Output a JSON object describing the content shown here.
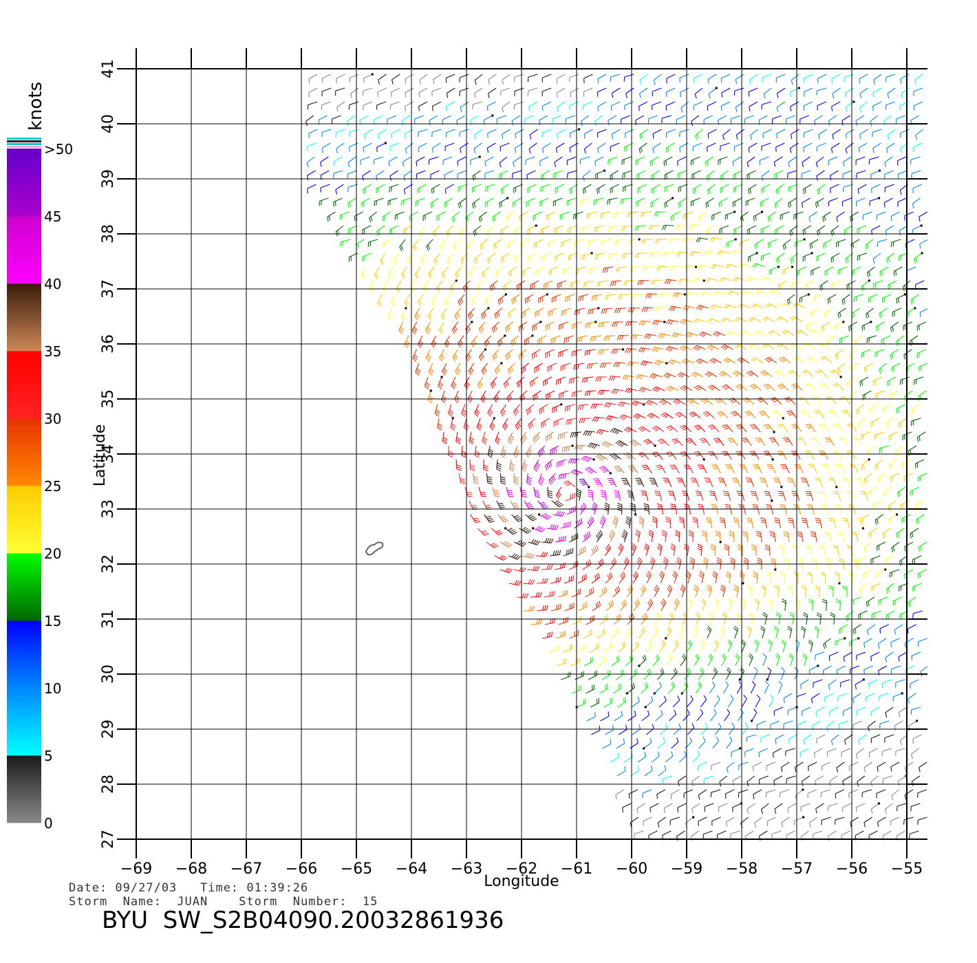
{
  "chart_data": {
    "type": "wind-barb-map",
    "xlabel": "Longitude",
    "ylabel": "Latitude",
    "xlim": [
      -69,
      -55
    ],
    "ylim": [
      27,
      41
    ],
    "x_ticks": [
      -69,
      -68,
      -67,
      -66,
      -65,
      -64,
      -63,
      -62,
      -61,
      -60,
      -59,
      -58,
      -57,
      -56,
      -55
    ],
    "y_ticks": [
      27,
      28,
      29,
      30,
      31,
      32,
      33,
      34,
      35,
      36,
      37,
      38,
      39,
      40,
      41
    ],
    "x_tick_labels": [
      "−69",
      "−68",
      "−67",
      "−66",
      "−65",
      "−64",
      "−63",
      "−62",
      "−61",
      "−60",
      "−59",
      "−58",
      "−57",
      "−56",
      "−55"
    ],
    "y_tick_labels": [
      "27",
      "28",
      "29",
      "30",
      "31",
      "32",
      "33",
      "34",
      "35",
      "36",
      "37",
      "38",
      "39",
      "40",
      "41"
    ],
    "grid": true,
    "colorbar": {
      "unit": "knots",
      "labels": [
        "0",
        "5",
        "10",
        "15",
        "20",
        "25",
        "30",
        "35",
        "40",
        "45",
        ">50"
      ],
      "bands": [
        {
          "from": 0,
          "to": 5,
          "colors": [
            "#8a8a8a",
            "#1a1a1a"
          ]
        },
        {
          "from": 5,
          "to": 10,
          "colors": [
            "#00ffff",
            "#0088ff"
          ]
        },
        {
          "from": 10,
          "to": 15,
          "colors": [
            "#0088ff",
            "#0000ff"
          ]
        },
        {
          "from": 15,
          "to": 20,
          "colors": [
            "#006600",
            "#00ff00"
          ]
        },
        {
          "from": 20,
          "to": 25,
          "colors": [
            "#ffff33",
            "#ffcc00"
          ]
        },
        {
          "from": 25,
          "to": 30,
          "colors": [
            "#ff8800",
            "#e63300"
          ]
        },
        {
          "from": 30,
          "to": 35,
          "colors": [
            "#ff2222",
            "#ff0000"
          ]
        },
        {
          "from": 35,
          "to": 40,
          "colors": [
            "#cc8855",
            "#3a1a0a"
          ]
        },
        {
          "from": 40,
          "to": 45,
          "colors": [
            "#ff00ff",
            "#cc00cc"
          ]
        },
        {
          "from": 45,
          "to": 50,
          "colors": [
            "#aa00cc",
            "#6600cc"
          ]
        }
      ]
    },
    "storm_center": {
      "lon": -61.2,
      "lat": 33.3
    },
    "island_outline_location": {
      "lon": -64.7,
      "lat": 32.3
    }
  },
  "footer": {
    "date_time": "Date: 09/27/03   Time: 01:39:26",
    "storm": "Storm  Name:  JUAN    Storm  Number:  15",
    "title": "BYU  SW_S2B04090.20032861936"
  }
}
